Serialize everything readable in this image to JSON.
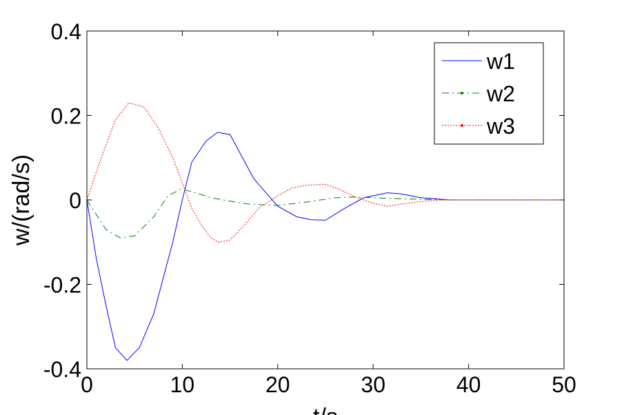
{
  "chart_data": {
    "type": "line",
    "title": "",
    "xlabel": "t/s",
    "ylabel": "w/(rad/s)",
    "xlim": [
      0,
      50
    ],
    "ylim": [
      -0.4,
      0.4
    ],
    "xticks": [
      "0",
      "10",
      "20",
      "30",
      "40",
      "50"
    ],
    "xtick_values": [
      0,
      10,
      20,
      30,
      40,
      50
    ],
    "yticks": [
      "-0.4",
      "-0.2",
      "0",
      "0.2",
      "0.4"
    ],
    "ytick_values": [
      -0.4,
      -0.2,
      0,
      0.2,
      0.4
    ],
    "grid": false,
    "legend_position": "top-right",
    "series": [
      {
        "name": "w1",
        "color": "#0000ff",
        "style": "solid",
        "x": [
          0,
          1,
          2,
          3,
          4.2,
          5.5,
          7,
          9,
          10,
          11,
          12.5,
          13.7,
          15,
          17.5,
          20,
          22,
          23.5,
          25,
          27,
          29,
          31.5,
          33,
          35,
          38,
          50
        ],
        "y": [
          0,
          -0.14,
          -0.25,
          -0.35,
          -0.38,
          -0.35,
          -0.27,
          -0.1,
          0,
          0.09,
          0.14,
          0.16,
          0.155,
          0.05,
          -0.015,
          -0.04,
          -0.047,
          -0.048,
          -0.02,
          0.005,
          0.017,
          0.014,
          0.005,
          0,
          0
        ]
      },
      {
        "name": "w2",
        "color": "#008000",
        "style": "dashdot",
        "x": [
          0,
          2,
          3.5,
          5,
          7,
          8.5,
          9.8,
          11,
          13,
          15,
          17,
          20,
          23,
          26,
          28,
          30,
          34,
          38,
          50
        ],
        "y": [
          0,
          -0.07,
          -0.09,
          -0.085,
          -0.04,
          0.01,
          0.025,
          0.02,
          0.005,
          -0.003,
          -0.01,
          -0.013,
          -0.005,
          0.005,
          0.007,
          0.005,
          0.002,
          0,
          0
        ]
      },
      {
        "name": "w3",
        "color": "#ff0000",
        "style": "dotted",
        "x": [
          0,
          1.5,
          2.5,
          3,
          4.4,
          6,
          7.5,
          9,
          10,
          11,
          12,
          13,
          13.8,
          15,
          16.5,
          18,
          20,
          21.5,
          23,
          25,
          26.5,
          28,
          30,
          31.5,
          33,
          35,
          37,
          50
        ],
        "y": [
          0,
          0.1,
          0.16,
          0.19,
          0.23,
          0.22,
          0.17,
          0.1,
          0.04,
          -0.02,
          -0.06,
          -0.09,
          -0.1,
          -0.095,
          -0.06,
          -0.02,
          0.01,
          0.028,
          0.035,
          0.037,
          0.025,
          0.008,
          -0.008,
          -0.015,
          -0.01,
          -0.004,
          0,
          0
        ]
      }
    ]
  }
}
